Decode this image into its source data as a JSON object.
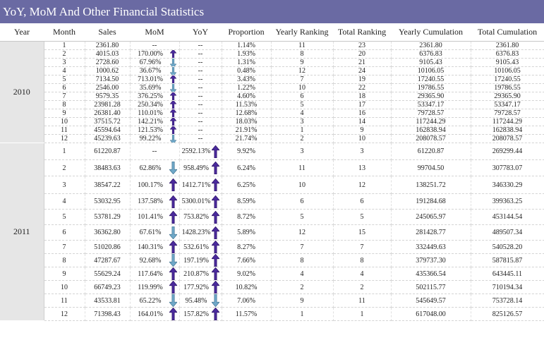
{
  "title": "YoY, MoM And Other Financial Statistics",
  "headers": [
    "Year",
    "Month",
    "Sales",
    "MoM",
    "YoY",
    "Proportion",
    "Yearly Ranking",
    "Total Ranking",
    "Yearly Cumulation",
    "Total Cumulation"
  ],
  "colors": {
    "title_bg": "#6a6aa3",
    "arrow_up": "#4a2a9c",
    "arrow_down": "#6fa8c8"
  },
  "groups": [
    {
      "year": "2010",
      "rows": [
        {
          "month": "1",
          "sales": "2361.80",
          "mom": "--",
          "mom_dir": "",
          "yoy": "--",
          "yoy_dir": "",
          "proportion": "1.14%",
          "yearly_rank": "11",
          "total_rank": "23",
          "yearly_cum": "2361.80",
          "total_cum": "2361.80"
        },
        {
          "month": "2",
          "sales": "4015.03",
          "mom": "170.00%",
          "mom_dir": "up",
          "yoy": "--",
          "yoy_dir": "",
          "proportion": "1.93%",
          "yearly_rank": "8",
          "total_rank": "20",
          "yearly_cum": "6376.83",
          "total_cum": "6376.83"
        },
        {
          "month": "3",
          "sales": "2728.60",
          "mom": "67.96%",
          "mom_dir": "down",
          "yoy": "--",
          "yoy_dir": "",
          "proportion": "1.31%",
          "yearly_rank": "9",
          "total_rank": "21",
          "yearly_cum": "9105.43",
          "total_cum": "9105.43"
        },
        {
          "month": "4",
          "sales": "1000.62",
          "mom": "36.67%",
          "mom_dir": "down",
          "yoy": "--",
          "yoy_dir": "",
          "proportion": "0.48%",
          "yearly_rank": "12",
          "total_rank": "24",
          "yearly_cum": "10106.05",
          "total_cum": "10106.05"
        },
        {
          "month": "5",
          "sales": "7134.50",
          "mom": "713.01%",
          "mom_dir": "up",
          "yoy": "--",
          "yoy_dir": "",
          "proportion": "3.43%",
          "yearly_rank": "7",
          "total_rank": "19",
          "yearly_cum": "17240.55",
          "total_cum": "17240.55"
        },
        {
          "month": "6",
          "sales": "2546.00",
          "mom": "35.69%",
          "mom_dir": "down",
          "yoy": "--",
          "yoy_dir": "",
          "proportion": "1.22%",
          "yearly_rank": "10",
          "total_rank": "22",
          "yearly_cum": "19786.55",
          "total_cum": "19786.55"
        },
        {
          "month": "7",
          "sales": "9579.35",
          "mom": "376.25%",
          "mom_dir": "up",
          "yoy": "--",
          "yoy_dir": "",
          "proportion": "4.60%",
          "yearly_rank": "6",
          "total_rank": "18",
          "yearly_cum": "29365.90",
          "total_cum": "29365.90"
        },
        {
          "month": "8",
          "sales": "23981.28",
          "mom": "250.34%",
          "mom_dir": "up",
          "yoy": "--",
          "yoy_dir": "",
          "proportion": "11.53%",
          "yearly_rank": "5",
          "total_rank": "17",
          "yearly_cum": "53347.17",
          "total_cum": "53347.17"
        },
        {
          "month": "9",
          "sales": "26381.40",
          "mom": "110.01%",
          "mom_dir": "up",
          "yoy": "--",
          "yoy_dir": "",
          "proportion": "12.68%",
          "yearly_rank": "4",
          "total_rank": "16",
          "yearly_cum": "79728.57",
          "total_cum": "79728.57"
        },
        {
          "month": "10",
          "sales": "37515.72",
          "mom": "142.21%",
          "mom_dir": "up",
          "yoy": "--",
          "yoy_dir": "",
          "proportion": "18.03%",
          "yearly_rank": "3",
          "total_rank": "14",
          "yearly_cum": "117244.29",
          "total_cum": "117244.29"
        },
        {
          "month": "11",
          "sales": "45594.64",
          "mom": "121.53%",
          "mom_dir": "up",
          "yoy": "--",
          "yoy_dir": "",
          "proportion": "21.91%",
          "yearly_rank": "1",
          "total_rank": "9",
          "yearly_cum": "162838.94",
          "total_cum": "162838.94"
        },
        {
          "month": "12",
          "sales": "45239.63",
          "mom": "99.22%",
          "mom_dir": "down",
          "yoy": "--",
          "yoy_dir": "",
          "proportion": "21.74%",
          "yearly_rank": "2",
          "total_rank": "10",
          "yearly_cum": "208078.57",
          "total_cum": "208078.57"
        }
      ]
    },
    {
      "year": "2011",
      "rows": [
        {
          "month": "1",
          "sales": "61220.87",
          "mom": "--",
          "mom_dir": "",
          "yoy": "2592.13%",
          "yoy_dir": "up",
          "proportion": "9.92%",
          "yearly_rank": "3",
          "total_rank": "3",
          "yearly_cum": "61220.87",
          "total_cum": "269299.44"
        },
        {
          "month": "2",
          "sales": "38483.63",
          "mom": "62.86%",
          "mom_dir": "down",
          "yoy": "958.49%",
          "yoy_dir": "up",
          "proportion": "6.24%",
          "yearly_rank": "11",
          "total_rank": "13",
          "yearly_cum": "99704.50",
          "total_cum": "307783.07"
        },
        {
          "month": "3",
          "sales": "38547.22",
          "mom": "100.17%",
          "mom_dir": "up",
          "yoy": "1412.71%",
          "yoy_dir": "up",
          "proportion": "6.25%",
          "yearly_rank": "10",
          "total_rank": "12",
          "yearly_cum": "138251.72",
          "total_cum": "346330.29"
        },
        {
          "month": "4",
          "sales": "53032.95",
          "mom": "137.58%",
          "mom_dir": "up",
          "yoy": "5300.01%",
          "yoy_dir": "up",
          "proportion": "8.59%",
          "yearly_rank": "6",
          "total_rank": "6",
          "yearly_cum": "191284.68",
          "total_cum": "399363.25"
        },
        {
          "month": "5",
          "sales": "53781.29",
          "mom": "101.41%",
          "mom_dir": "up",
          "yoy": "753.82%",
          "yoy_dir": "up",
          "proportion": "8.72%",
          "yearly_rank": "5",
          "total_rank": "5",
          "yearly_cum": "245065.97",
          "total_cum": "453144.54"
        },
        {
          "month": "6",
          "sales": "36362.80",
          "mom": "67.61%",
          "mom_dir": "down",
          "yoy": "1428.23%",
          "yoy_dir": "up",
          "proportion": "5.89%",
          "yearly_rank": "12",
          "total_rank": "15",
          "yearly_cum": "281428.77",
          "total_cum": "489507.34"
        },
        {
          "month": "7",
          "sales": "51020.86",
          "mom": "140.31%",
          "mom_dir": "up",
          "yoy": "532.61%",
          "yoy_dir": "up",
          "proportion": "8.27%",
          "yearly_rank": "7",
          "total_rank": "7",
          "yearly_cum": "332449.63",
          "total_cum": "540528.20"
        },
        {
          "month": "8",
          "sales": "47287.67",
          "mom": "92.68%",
          "mom_dir": "down",
          "yoy": "197.19%",
          "yoy_dir": "up",
          "proportion": "7.66%",
          "yearly_rank": "8",
          "total_rank": "8",
          "yearly_cum": "379737.30",
          "total_cum": "587815.87"
        },
        {
          "month": "9",
          "sales": "55629.24",
          "mom": "117.64%",
          "mom_dir": "up",
          "yoy": "210.87%",
          "yoy_dir": "up",
          "proportion": "9.02%",
          "yearly_rank": "4",
          "total_rank": "4",
          "yearly_cum": "435366.54",
          "total_cum": "643445.11"
        },
        {
          "month": "10",
          "sales": "66749.23",
          "mom": "119.99%",
          "mom_dir": "up",
          "yoy": "177.92%",
          "yoy_dir": "up",
          "proportion": "10.82%",
          "yearly_rank": "2",
          "total_rank": "2",
          "yearly_cum": "502115.77",
          "total_cum": "710194.34"
        },
        {
          "month": "11",
          "sales": "43533.81",
          "mom": "65.22%",
          "mom_dir": "down",
          "yoy": "95.48%",
          "yoy_dir": "down",
          "proportion": "7.06%",
          "yearly_rank": "9",
          "total_rank": "11",
          "yearly_cum": "545649.57",
          "total_cum": "753728.14"
        },
        {
          "month": "12",
          "sales": "71398.43",
          "mom": "164.01%",
          "mom_dir": "up",
          "yoy": "157.82%",
          "yoy_dir": "up",
          "proportion": "11.57%",
          "yearly_rank": "1",
          "total_rank": "1",
          "yearly_cum": "617048.00",
          "total_cum": "825126.57"
        }
      ]
    }
  ]
}
